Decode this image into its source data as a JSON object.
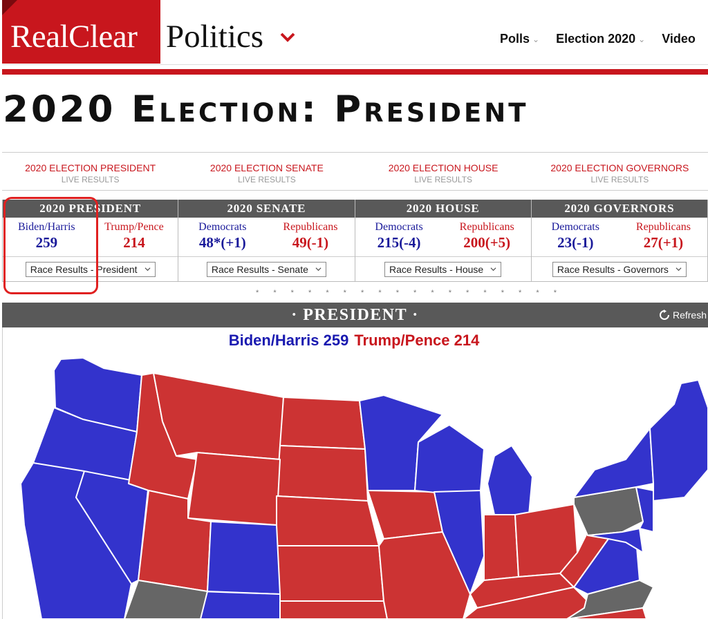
{
  "header": {
    "logo_left": "RealClear",
    "logo_right": "Politics",
    "nav": [
      {
        "label": "Polls"
      },
      {
        "label": "Election 2020"
      },
      {
        "label": "Video"
      }
    ]
  },
  "title": "2020 Election: President",
  "live_links": [
    {
      "title": "2020 ELECTION PRESIDENT",
      "sub": "LIVE RESULTS"
    },
    {
      "title": "2020 ELECTION SENATE",
      "sub": "LIVE RESULTS"
    },
    {
      "title": "2020 ELECTION HOUSE",
      "sub": "LIVE RESULTS"
    },
    {
      "title": "2020 ELECTION GOVERNORS",
      "sub": "LIVE RESULTS"
    }
  ],
  "results": [
    {
      "header": "2020 PRESIDENT",
      "left_name": "Biden/Harris",
      "left_value": "259",
      "right_name": "Trump/Pence",
      "right_value": "214",
      "select": "Race Results - President"
    },
    {
      "header": "2020 SENATE",
      "left_name": "Democrats",
      "left_value": "48*(+1)",
      "right_name": "Republicans",
      "right_value": "49(-1)",
      "select": "Race Results - Senate"
    },
    {
      "header": "2020 HOUSE",
      "left_name": "Democrats",
      "left_value": "215(-4)",
      "right_name": "Republicans",
      "right_value": "200(+5)",
      "select": "Race Results - House"
    },
    {
      "header": "2020 GOVERNORS",
      "left_name": "Democrats",
      "left_value": "23(-1)",
      "right_name": "Republicans",
      "right_value": "27(+1)",
      "select": "Race Results - Governors"
    }
  ],
  "map_section": {
    "header": "· PRESIDENT ·",
    "refresh": "Refresh",
    "tally_left": "Biden/Harris 259",
    "tally_right": "Trump/Pence 214"
  },
  "colors": {
    "brand_red": "#c8161d",
    "dem_blue": "#3333cc",
    "rep_red": "#cc3333",
    "undecided_gray": "#666666",
    "bar_gray": "#595959"
  }
}
